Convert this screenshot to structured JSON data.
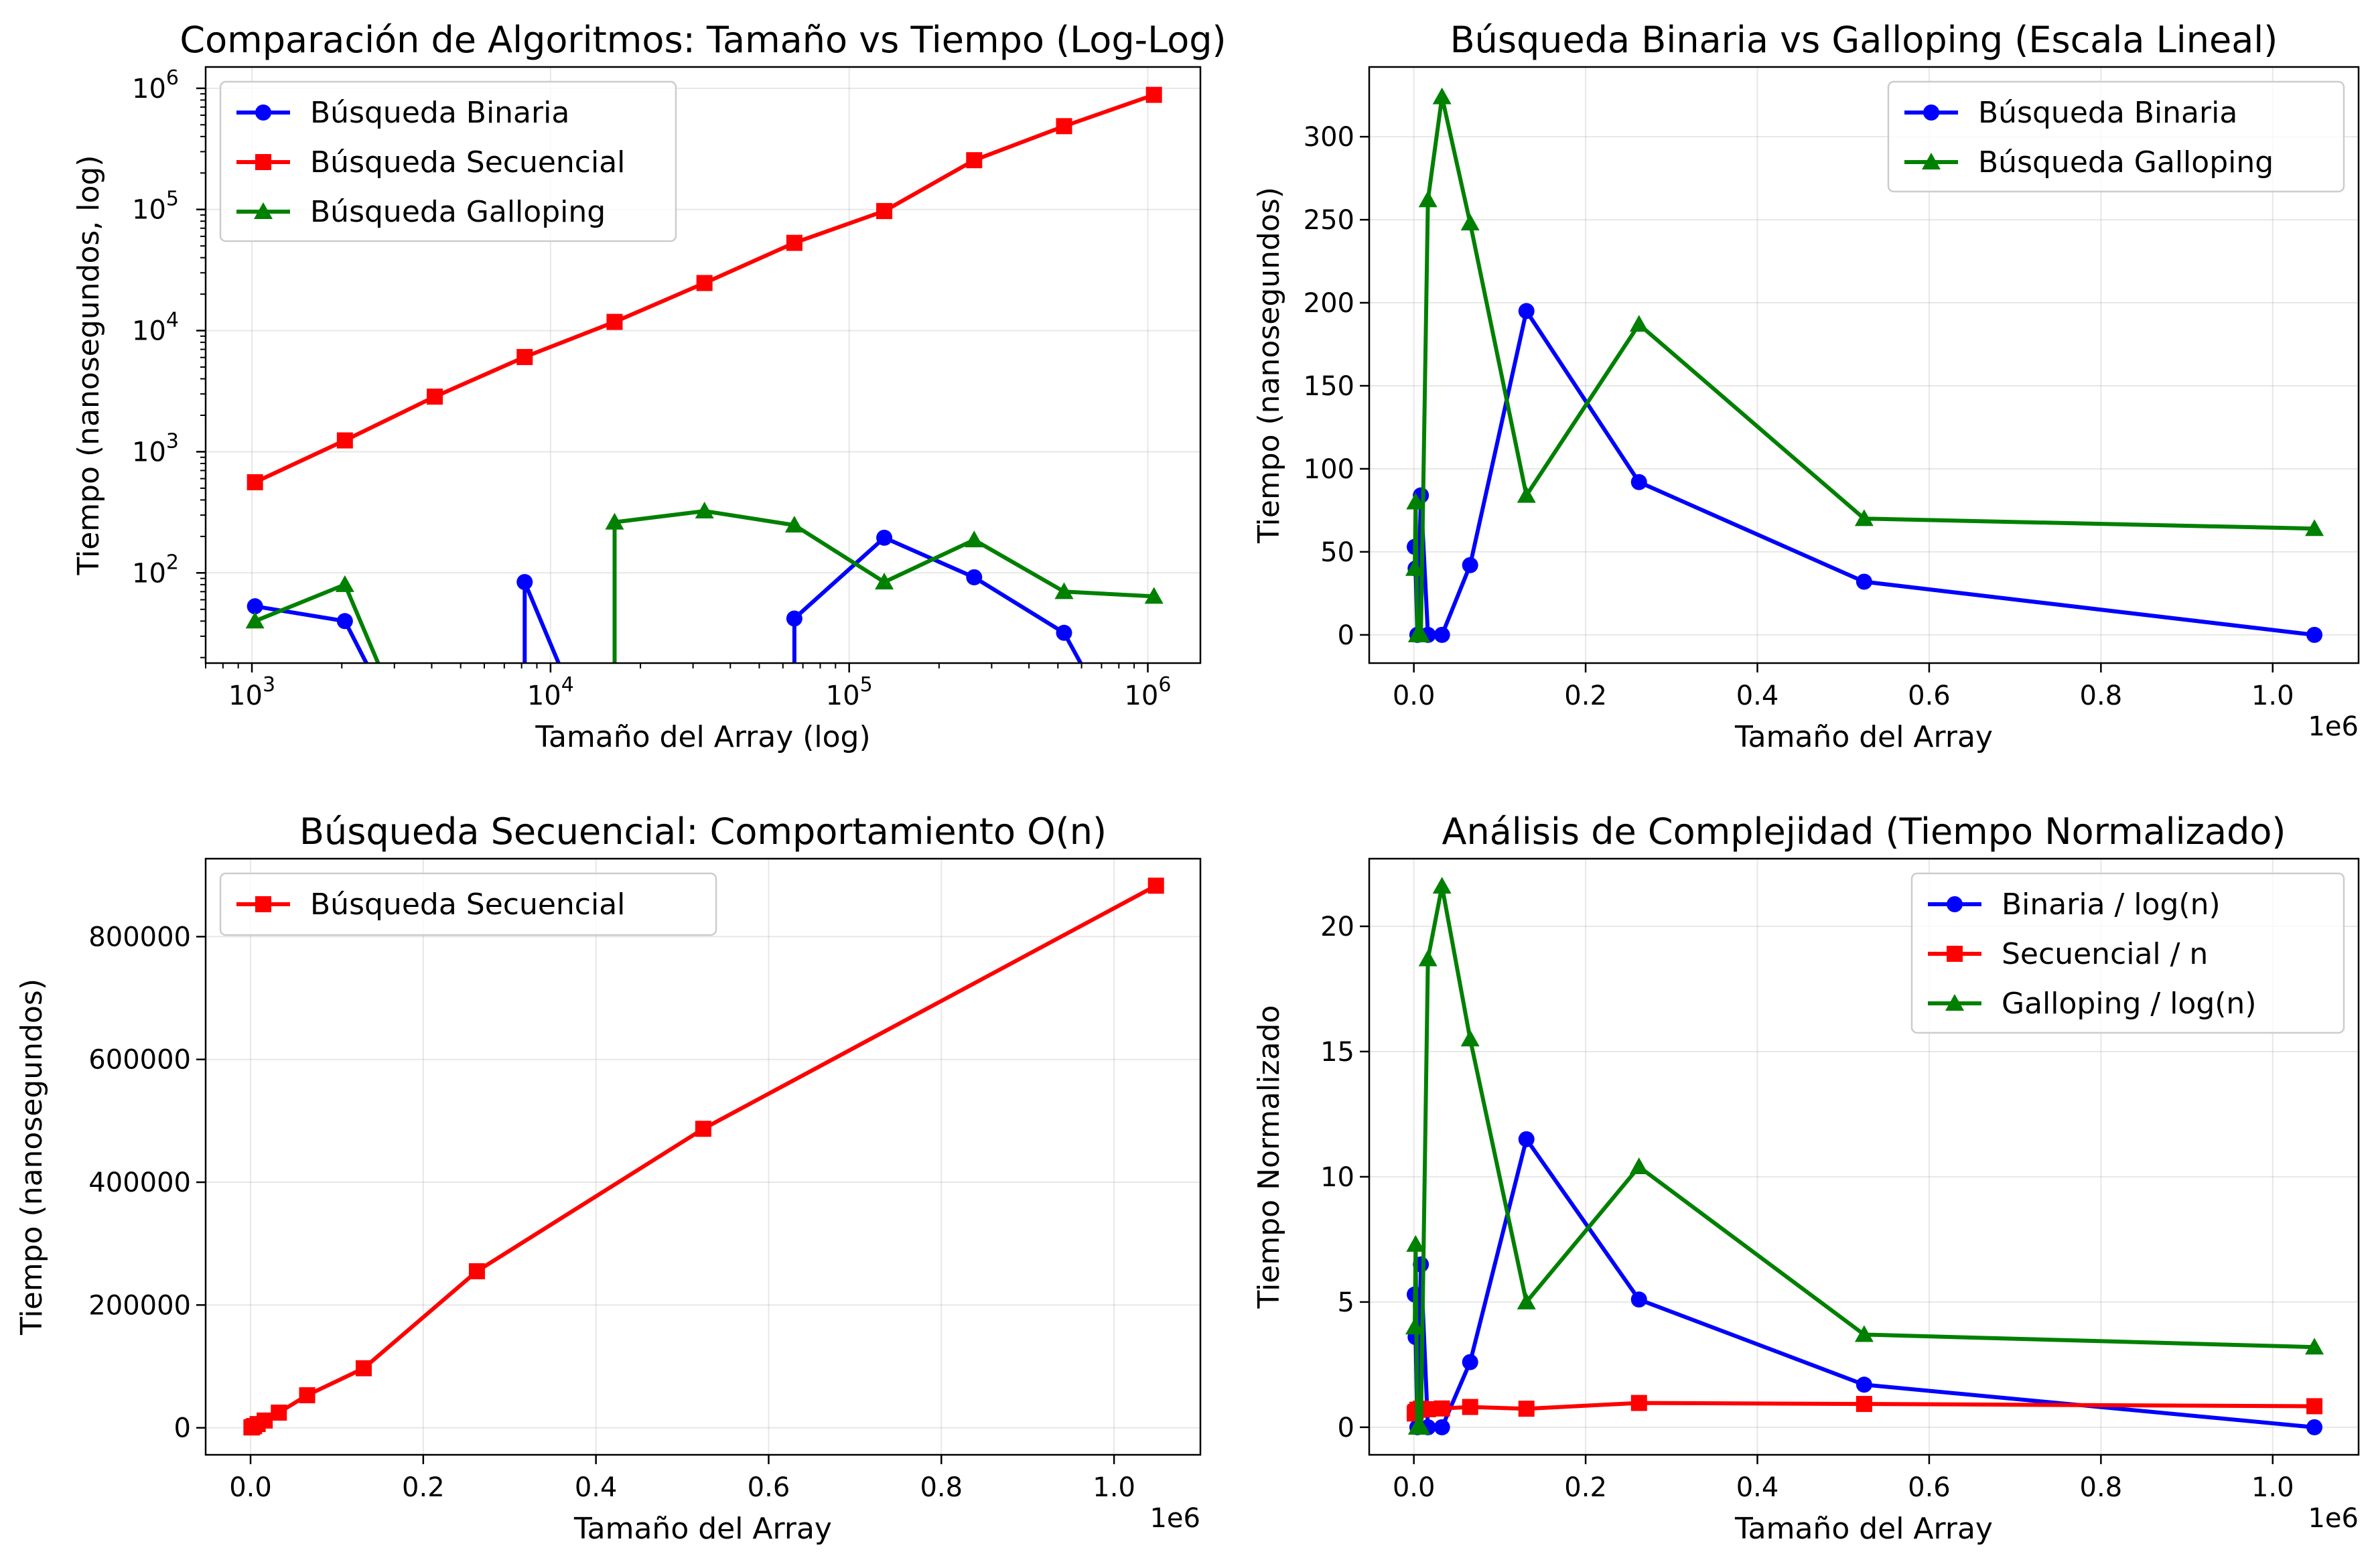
{
  "chart_data": [
    {
      "type": "line",
      "title": "Comparación de Algoritmos: Tamaño vs Tiempo (Log-Log)",
      "xlabel": "Tamaño del Array (log)",
      "ylabel": "Tiempo (nanosegundos, log)",
      "xscale": "log",
      "yscale": "log",
      "xlim": [
        700,
        1500000
      ],
      "ylim": [
        18,
        1500000
      ],
      "x_ticks": [
        {
          "value": 1000,
          "label": "10",
          "exp": "3"
        },
        {
          "value": 10000,
          "label": "10",
          "exp": "4"
        },
        {
          "value": 100000,
          "label": "10",
          "exp": "5"
        },
        {
          "value": 1000000,
          "label": "10",
          "exp": "6"
        }
      ],
      "y_ticks": [
        {
          "value": 100,
          "label": "10",
          "exp": "2"
        },
        {
          "value": 1000,
          "label": "10",
          "exp": "3"
        },
        {
          "value": 10000,
          "label": "10",
          "exp": "4"
        },
        {
          "value": 100000,
          "label": "10",
          "exp": "5"
        },
        {
          "value": 1000000,
          "label": "10",
          "exp": "6"
        }
      ],
      "grid": true,
      "legend": "top-left",
      "x": [
        1024,
        2048,
        4096,
        8192,
        16384,
        32768,
        65536,
        131072,
        262144,
        524288,
        1048576
      ],
      "series": [
        {
          "name": "Búsqueda Binaria",
          "color": "#0000ff",
          "marker": "circle",
          "values": [
            53,
            40,
            0,
            84,
            0,
            0,
            42,
            195,
            92,
            32,
            0
          ]
        },
        {
          "name": "Búsqueda Secuencial",
          "color": "#ff0000",
          "marker": "square",
          "values": [
            560,
            1240,
            2850,
            6050,
            11800,
            24700,
            53000,
            97000,
            255000,
            487000,
            883000
          ]
        },
        {
          "name": "Búsqueda Galloping",
          "color": "#008000",
          "marker": "triangle",
          "values": [
            40,
            80,
            0,
            0,
            262,
            324,
            248,
            84,
            187,
            70,
            64
          ]
        }
      ]
    },
    {
      "type": "line",
      "title": "Búsqueda Binaria vs Galloping (Escala Lineal)",
      "xlabel": "Tamaño del Array",
      "ylabel": "Tiempo (nanosegundos)",
      "xscale": "linear",
      "yscale": "linear",
      "xlim": [
        -52000,
        1100000
      ],
      "ylim": [
        -17,
        342
      ],
      "x_ticks": [
        {
          "value": 0,
          "label": "0.0"
        },
        {
          "value": 200000,
          "label": "0.2"
        },
        {
          "value": 400000,
          "label": "0.4"
        },
        {
          "value": 600000,
          "label": "0.6"
        },
        {
          "value": 800000,
          "label": "0.8"
        },
        {
          "value": 1000000,
          "label": "1.0"
        }
      ],
      "y_ticks": [
        {
          "value": 0,
          "label": "0"
        },
        {
          "value": 50,
          "label": "50"
        },
        {
          "value": 100,
          "label": "100"
        },
        {
          "value": 150,
          "label": "150"
        },
        {
          "value": 200,
          "label": "200"
        },
        {
          "value": 250,
          "label": "250"
        },
        {
          "value": 300,
          "label": "300"
        }
      ],
      "x_offset_label": "1e6",
      "grid": true,
      "legend": "top-right",
      "x": [
        1024,
        2048,
        4096,
        8192,
        16384,
        32768,
        65536,
        131072,
        262144,
        524288,
        1048576
      ],
      "series": [
        {
          "name": "Búsqueda Binaria",
          "color": "#0000ff",
          "marker": "circle",
          "values": [
            53,
            40,
            0,
            84,
            0,
            0,
            42,
            195,
            92,
            32,
            0
          ]
        },
        {
          "name": "Búsqueda Galloping",
          "color": "#008000",
          "marker": "triangle",
          "values": [
            40,
            80,
            0,
            0,
            262,
            324,
            248,
            84,
            187,
            70,
            64
          ]
        }
      ]
    },
    {
      "type": "line",
      "title": "Búsqueda Secuencial: Comportamiento O(n)",
      "xlabel": "Tamaño del Array",
      "ylabel": "Tiempo (nanosegundos)",
      "xscale": "linear",
      "yscale": "linear",
      "xlim": [
        -52000,
        1100000
      ],
      "ylim": [
        -44000,
        927000
      ],
      "x_ticks": [
        {
          "value": 0,
          "label": "0.0"
        },
        {
          "value": 200000,
          "label": "0.2"
        },
        {
          "value": 400000,
          "label": "0.4"
        },
        {
          "value": 600000,
          "label": "0.6"
        },
        {
          "value": 800000,
          "label": "0.8"
        },
        {
          "value": 1000000,
          "label": "1.0"
        }
      ],
      "y_ticks": [
        {
          "value": 0,
          "label": "0"
        },
        {
          "value": 200000,
          "label": "200000"
        },
        {
          "value": 400000,
          "label": "400000"
        },
        {
          "value": 600000,
          "label": "600000"
        },
        {
          "value": 800000,
          "label": "800000"
        }
      ],
      "x_offset_label": "1e6",
      "grid": true,
      "legend": "top-left",
      "x": [
        1024,
        2048,
        4096,
        8192,
        16384,
        32768,
        65536,
        131072,
        262144,
        524288,
        1048576
      ],
      "series": [
        {
          "name": "Búsqueda Secuencial",
          "color": "#ff0000",
          "marker": "square",
          "values": [
            560,
            1240,
            2850,
            6050,
            11800,
            24700,
            53000,
            97000,
            255000,
            487000,
            883000
          ]
        }
      ]
    },
    {
      "type": "line",
      "title": "Análisis de Complejidad (Tiempo Normalizado)",
      "xlabel": "Tamaño del Array",
      "ylabel": "Tiempo Normalizado",
      "xscale": "linear",
      "yscale": "linear",
      "xlim": [
        -52000,
        1100000
      ],
      "ylim": [
        -1.1,
        22.7
      ],
      "x_ticks": [
        {
          "value": 0,
          "label": "0.0"
        },
        {
          "value": 200000,
          "label": "0.2"
        },
        {
          "value": 400000,
          "label": "0.4"
        },
        {
          "value": 600000,
          "label": "0.6"
        },
        {
          "value": 800000,
          "label": "0.8"
        },
        {
          "value": 1000000,
          "label": "1.0"
        }
      ],
      "y_ticks": [
        {
          "value": 0,
          "label": "0"
        },
        {
          "value": 5,
          "label": "5"
        },
        {
          "value": 10,
          "label": "10"
        },
        {
          "value": 15,
          "label": "15"
        },
        {
          "value": 20,
          "label": "20"
        }
      ],
      "x_offset_label": "1e6",
      "grid": true,
      "legend": "top-right",
      "x": [
        1024,
        2048,
        4096,
        8192,
        16384,
        32768,
        65536,
        131072,
        262144,
        524288,
        1048576
      ],
      "series": [
        {
          "name": "Binaria / log(n)",
          "color": "#0000ff",
          "marker": "circle",
          "values": [
            5.3,
            3.6,
            0,
            6.5,
            0,
            0,
            2.6,
            11.5,
            5.1,
            1.7,
            0
          ]
        },
        {
          "name": "Secuencial / n",
          "color": "#ff0000",
          "marker": "square",
          "values": [
            0.55,
            0.61,
            0.7,
            0.74,
            0.72,
            0.75,
            0.81,
            0.74,
            0.97,
            0.93,
            0.84
          ]
        },
        {
          "name": "Galloping / log(n)",
          "color": "#008000",
          "marker": "triangle",
          "values": [
            4.0,
            7.3,
            0,
            0,
            18.7,
            21.6,
            15.5,
            5.0,
            10.4,
            3.7,
            3.2
          ]
        }
      ]
    }
  ]
}
